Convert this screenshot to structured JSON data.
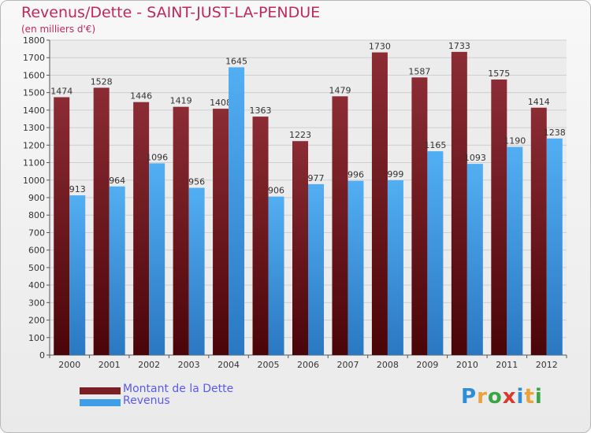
{
  "header": {
    "title": "Revenus/Dette - SAINT-JUST-LA-PENDUE",
    "subtitle": "(en milliers d'€)"
  },
  "logo": {
    "text": "Proxiti",
    "letters": [
      {
        "ch": "P",
        "color": "#2d8ed8"
      },
      {
        "ch": "r",
        "color": "#e8a33a"
      },
      {
        "ch": "o",
        "color": "#3aa545"
      },
      {
        "ch": "x",
        "color": "#d83a2d"
      },
      {
        "ch": "i",
        "color": "#2d8ed8"
      },
      {
        "ch": "t",
        "color": "#e8a33a"
      },
      {
        "ch": "i",
        "color": "#3aa545"
      }
    ]
  },
  "chart_data": {
    "type": "bar",
    "title": "Revenus/Dette - SAINT-JUST-LA-PENDUE",
    "subtitle": "(en milliers d'€)",
    "categories": [
      "2000",
      "2001",
      "2002",
      "2003",
      "2004",
      "2005",
      "2006",
      "2007",
      "2008",
      "2009",
      "2010",
      "2011",
      "2012"
    ],
    "series": [
      {
        "name": "Montant de la Dette",
        "color": "#7a1f24",
        "values": [
          1474,
          1528,
          1446,
          1419,
          1408,
          1363,
          1223,
          1479,
          1730,
          1587,
          1733,
          1575,
          1414
        ]
      },
      {
        "name": "Revenus",
        "color": "#3f9ee8",
        "values": [
          913,
          964,
          1096,
          956,
          1645,
          906,
          977,
          996,
          999,
          1165,
          1093,
          1190,
          1238
        ]
      }
    ],
    "ylim": [
      0,
      1800
    ],
    "yticks": [
      0,
      100,
      200,
      300,
      400,
      500,
      600,
      700,
      800,
      900,
      1000,
      1100,
      1200,
      1300,
      1400,
      1500,
      1600,
      1700,
      1800
    ],
    "grid": true,
    "legend_position": "bottom-left"
  }
}
